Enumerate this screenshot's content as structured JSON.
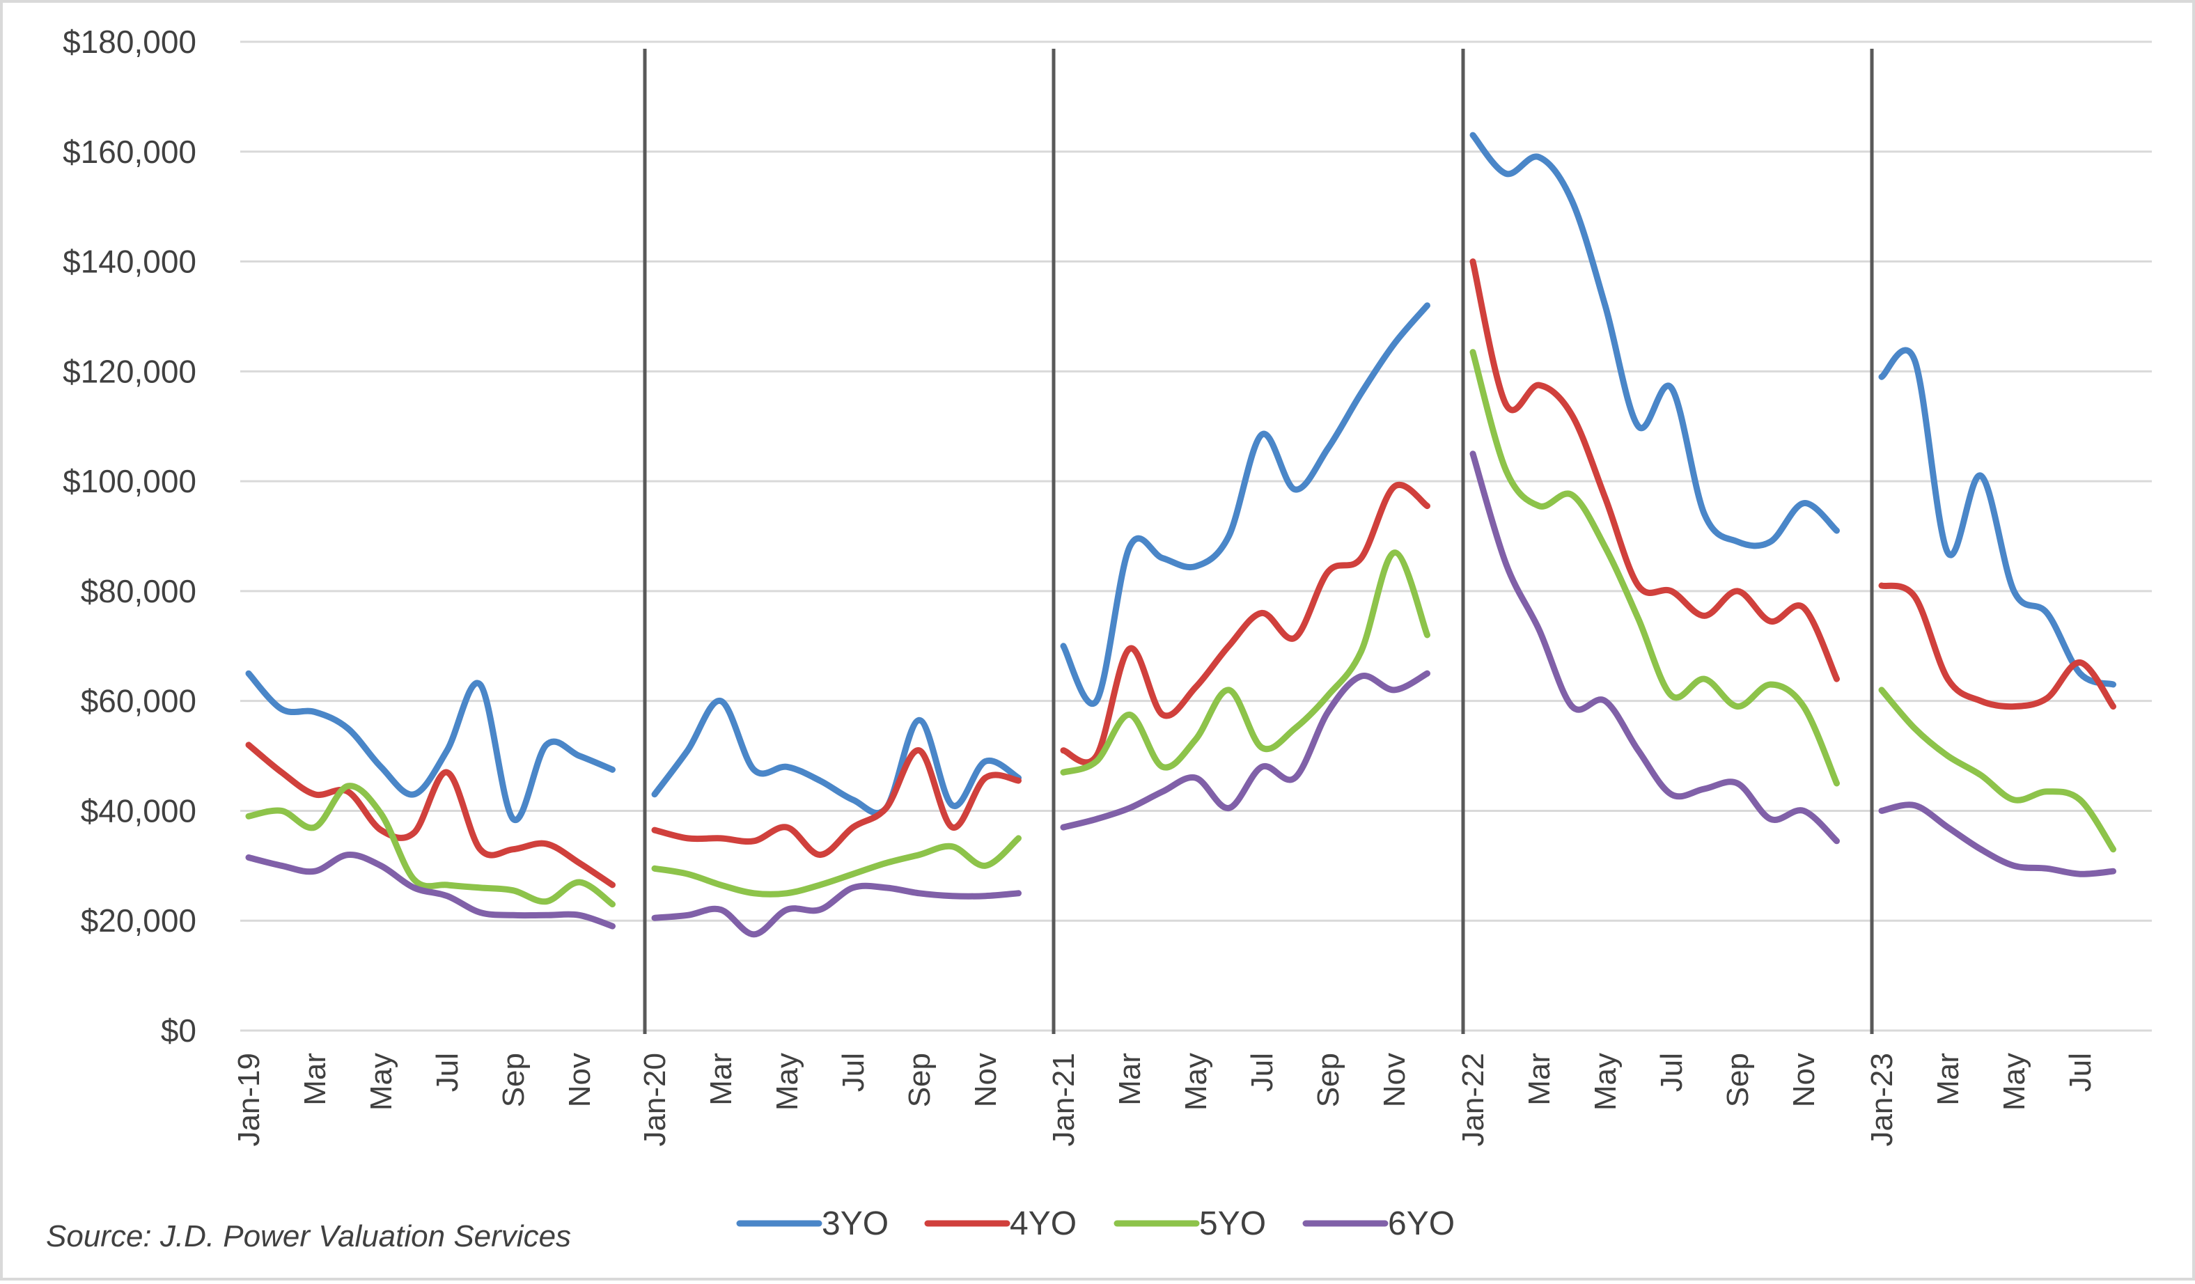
{
  "chart_data": {
    "type": "line",
    "title": "",
    "xlabel": "",
    "ylabel": "",
    "ylim": [
      0,
      180000
    ],
    "yticks": [
      "$0",
      "$20,000",
      "$40,000",
      "$60,000",
      "$80,000",
      "$100,000",
      "$120,000",
      "$140,000",
      "$160,000",
      "$180,000"
    ],
    "ytick_values": [
      0,
      20000,
      40000,
      60000,
      80000,
      100000,
      120000,
      140000,
      160000,
      180000
    ],
    "grid": "horizontal",
    "legend_position": "bottom",
    "source": "Source: J.D. Power Valuation Services",
    "year_separators": [
      "Jan-20",
      "Jan-21",
      "Jan-22",
      "Jan-23"
    ],
    "x_labels": [
      "Jan-19",
      "Mar",
      "May",
      "Jul",
      "Sep",
      "Nov",
      "Jan-20",
      "Mar",
      "May",
      "Jul",
      "Sep",
      "Nov",
      "Jan-21",
      "Mar",
      "May",
      "Jul",
      "Sep",
      "Nov",
      "Jan-22",
      "Mar",
      "May",
      "Jul",
      "Sep",
      "Nov",
      "Jan-23",
      "Mar",
      "May",
      "Jul"
    ],
    "segments": [
      {
        "year": "2019",
        "months": 12
      },
      {
        "year": "2020",
        "months": 12
      },
      {
        "year": "2021",
        "months": 12
      },
      {
        "year": "2022",
        "months": 12
      },
      {
        "year": "2023",
        "months": 8
      }
    ],
    "series": [
      {
        "name": "3YO",
        "color": "#4a86c8",
        "values": [
          [
            65000,
            58500,
            58000,
            55000,
            48000,
            43000,
            51000,
            63000,
            38500,
            52000,
            50000,
            47500
          ],
          [
            43000,
            51000,
            60000,
            47500,
            48000,
            45500,
            42000,
            40500,
            56500,
            41000,
            49000,
            46000
          ],
          [
            70000,
            60000,
            88000,
            86000,
            84500,
            90000,
            108500,
            98500,
            106000,
            116000,
            125000,
            132000
          ],
          [
            163000,
            156000,
            159000,
            151000,
            132000,
            110000,
            117000,
            94000,
            89000,
            89000,
            96000,
            91000
          ],
          [
            119000,
            122000,
            87000,
            101000,
            80000,
            76000,
            65000,
            63000
          ]
        ]
      },
      {
        "name": "4YO",
        "color": "#d0403c",
        "values": [
          [
            52000,
            47000,
            43000,
            43500,
            36500,
            36000,
            47000,
            33000,
            33000,
            34000,
            30500,
            26500
          ],
          [
            36500,
            35000,
            35000,
            34500,
            37000,
            32000,
            37000,
            40500,
            51000,
            37000,
            46000,
            45500
          ],
          [
            51000,
            50000,
            69500,
            57500,
            62500,
            70000,
            76000,
            71500,
            83500,
            86000,
            99000,
            95500
          ],
          [
            140000,
            114000,
            117500,
            112000,
            97000,
            81000,
            80000,
            75500,
            80000,
            74500,
            77000,
            64000
          ],
          [
            81000,
            79000,
            64000,
            60000,
            59000,
            60500,
            67000,
            59000
          ]
        ]
      },
      {
        "name": "5YO",
        "color": "#8dc34a",
        "values": [
          [
            39000,
            40000,
            37000,
            44500,
            39500,
            27500,
            26500,
            26000,
            25500,
            23500,
            27000,
            23000
          ],
          [
            29500,
            28500,
            26500,
            25000,
            25000,
            26500,
            28500,
            30500,
            32000,
            33500,
            30000,
            35000
          ],
          [
            47000,
            49000,
            57500,
            48000,
            53000,
            62000,
            51500,
            55000,
            61000,
            69000,
            87000,
            72000
          ],
          [
            123500,
            102000,
            95500,
            97500,
            88000,
            75000,
            61000,
            64000,
            59000,
            63000,
            59000,
            45000
          ],
          [
            62000,
            55000,
            50000,
            46500,
            42000,
            43500,
            42000,
            33000
          ]
        ]
      },
      {
        "name": "6YO",
        "color": "#8060a8",
        "values": [
          [
            31500,
            30000,
            29000,
            32000,
            30000,
            26000,
            24500,
            21500,
            21000,
            21000,
            21000,
            19000
          ],
          [
            20500,
            21000,
            22000,
            17500,
            22000,
            22000,
            26000,
            26000,
            25000,
            24500,
            24500,
            25000
          ],
          [
            37000,
            38500,
            40500,
            43500,
            46000,
            40500,
            48000,
            46000,
            58000,
            64500,
            62000,
            65000
          ],
          [
            105000,
            85000,
            73000,
            59000,
            60000,
            51000,
            43000,
            44000,
            45000,
            38500,
            40000,
            34500
          ],
          [
            40000,
            41000,
            37000,
            33000,
            30000,
            29500,
            28500,
            29000
          ]
        ]
      }
    ]
  }
}
